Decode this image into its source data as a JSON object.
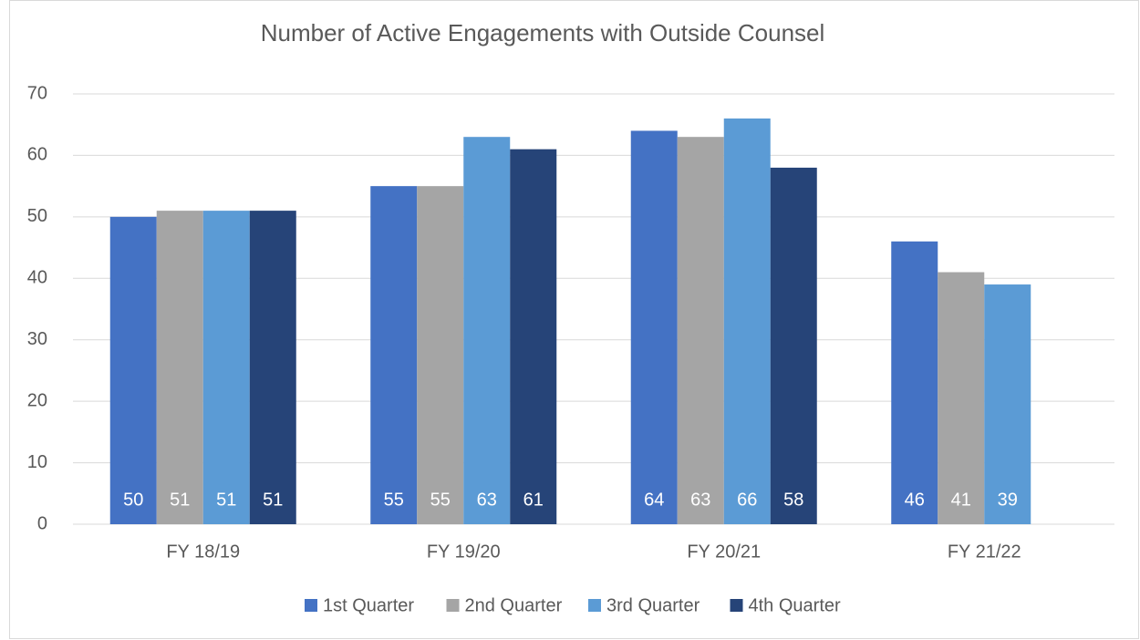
{
  "chart_data": {
    "type": "bar",
    "title": "Number of Active Engagements with Outside Counsel",
    "categories": [
      "FY 18/19",
      "FY 19/20",
      "FY 20/21",
      "FY 21/22"
    ],
    "series": [
      {
        "name": "1st Quarter",
        "color": "#4472c4",
        "values": [
          50,
          55,
          64,
          46
        ]
      },
      {
        "name": "2nd Quarter",
        "color": "#a5a5a5",
        "values": [
          51,
          55,
          63,
          41
        ]
      },
      {
        "name": "3rd Quarter",
        "color": "#5b9bd5",
        "values": [
          51,
          63,
          66,
          39
        ]
      },
      {
        "name": "4th Quarter",
        "color": "#264478",
        "values": [
          51,
          61,
          58,
          null
        ]
      }
    ],
    "ylim": [
      0,
      70
    ],
    "yticks": [
      0,
      10,
      20,
      30,
      40,
      50,
      60,
      70
    ],
    "grid": true,
    "legend": "bottom"
  }
}
